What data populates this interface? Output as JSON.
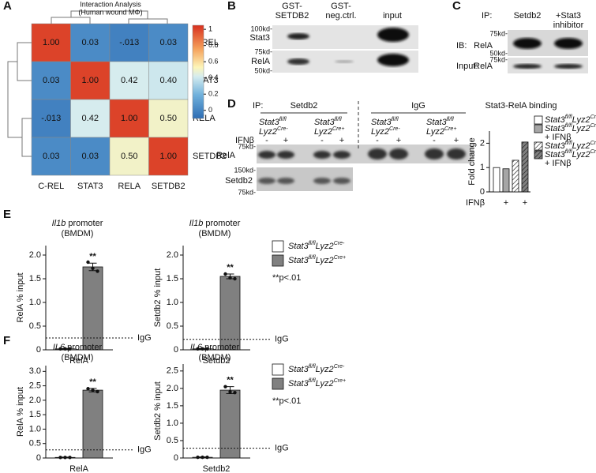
{
  "figure": {
    "panel_labels": [
      "A",
      "B",
      "C",
      "D",
      "E",
      "F"
    ],
    "heatmap": {
      "title": "Interaction Analysis",
      "subtitle": "(Human wound MΦ)",
      "categories": [
        "C-REL",
        "STAT3",
        "RELA",
        "SETDB2"
      ],
      "matrix": [
        [
          1,
          0.03,
          -0.013,
          0.03
        ],
        [
          0.03,
          1,
          0.42,
          0.4
        ],
        [
          -0.013,
          0.42,
          1,
          0.5
        ],
        [
          0.03,
          0.03,
          0.5,
          1
        ]
      ],
      "cell_labels": [
        [
          "1.00",
          "0.03",
          "-.013",
          "0.03"
        ],
        [
          "0.03",
          "1.00",
          "0.42",
          "0.40"
        ],
        [
          "-.013",
          "0.42",
          "1.00",
          "0.50"
        ],
        [
          "0.03",
          "0.03",
          "0.50",
          "1.00"
        ]
      ],
      "colorbar_lim": [
        -0.1,
        1.05
      ],
      "colorbar_ticks": [
        0,
        0.2,
        0.4,
        0.6,
        0.8,
        1
      ]
    },
    "blot_b": {
      "columns": [
        [
          "GST-",
          "SETDB2"
        ],
        [
          "GST-",
          "neg.ctrl."
        ],
        [
          "input"
        ]
      ],
      "rows": [
        "Stat3",
        "RelA"
      ],
      "markers": [
        "100kd-",
        "75kd-",
        "50kd-"
      ]
    },
    "blot_c": {
      "ip_label": "IP:",
      "ip_target": "Setdb2",
      "condition": [
        "+Stat3",
        "inhibitor"
      ],
      "ib_label": "IB:",
      "ib_target": "RelA",
      "input_label": "Input:",
      "input_target": "RelA",
      "markers": [
        "75kd-",
        "50kd-",
        "75kd-"
      ]
    },
    "blot_d": {
      "ip_label": "IP:",
      "groups": [
        "Setdb2",
        "IgG"
      ],
      "genotypes": [
        {
          "gene": "Stat3",
          "gene_sup": "fl/fl",
          "driver": "Lyz2",
          "driver_sup": "Cre-"
        },
        {
          "gene": "Stat3",
          "gene_sup": "fl/fl",
          "driver": "Lyz2",
          "driver_sup": "Cre+"
        },
        {
          "gene": "Stat3",
          "gene_sup": "fl/fl",
          "driver": "Lyz2",
          "driver_sup": "Cre-"
        },
        {
          "gene": "Stat3",
          "gene_sup": "fl/fl",
          "driver": "Lyz2",
          "driver_sup": "Cre+"
        }
      ],
      "treatment_label": "IFNβ",
      "lanes": [
        "-",
        "+",
        "-",
        "+",
        "-",
        "+",
        "-",
        "+"
      ],
      "rows": [
        "RelA",
        "Setdb2"
      ],
      "markers": [
        "75kd-",
        "150kd-",
        "75kd-"
      ]
    },
    "binding_chart": {
      "type": "bar",
      "title": "Stat3-RelA binding",
      "ylabel": "Fold change",
      "xlabel": "IFNβ",
      "categories": [
        null,
        "+",
        null,
        "+"
      ],
      "values": [
        1,
        0.95,
        1.3,
        2.05
      ],
      "colors": [
        "#ffffff",
        "#a6a6a6",
        "#ffffff",
        "#808080"
      ],
      "hatched": [
        false,
        false,
        true,
        true
      ],
      "ylim": [
        0,
        2.5
      ],
      "yticks": [
        0,
        1,
        2
      ],
      "legend": [
        {
          "gene": "Stat3",
          "gene_sup": "fl/fl",
          "driver": "Lyz2",
          "driver_sup": "Cre-"
        },
        {
          "gene": "Stat3",
          "gene_sup": "fl/fl",
          "driver": "Lyz2",
          "driver_sup": "Cre-",
          "treatment": "+ IFNβ"
        },
        {
          "gene": "Stat3",
          "gene_sup": "fl/fl",
          "driver": "Lyz2",
          "driver_sup": "Cre+"
        },
        {
          "gene": "Stat3",
          "gene_sup": "fl/fl",
          "driver": "Lyz2",
          "driver_sup": "Cre+",
          "treatment": "+ IFNβ"
        }
      ]
    },
    "promoter_rows": [
      {
        "legend": [
          {
            "gene": "Stat3",
            "gene_sup": "fl/fl",
            "driver": "Lyz2",
            "driver_sup": "Cre-"
          },
          {
            "gene": "Stat3",
            "gene_sup": "fl/fl",
            "driver": "Lyz2",
            "driver_sup": "Cre+"
          }
        ],
        "colors": [
          "#ffffff",
          "#808080"
        ],
        "note": "**p<.01",
        "charts": [
          {
            "type": "bar",
            "title_gene": "Il1b",
            "title_text": "promoter",
            "title_sub": "(BMDM)",
            "ylabel": "RelA % input",
            "category": "RelA",
            "values": [
              0.02,
              1.75
            ],
            "errors": [
              0.01,
              0.08
            ],
            "points": [
              [
                0.02,
                0.02,
                0.02
              ],
              [
                1.85,
                1.72,
                1.66
              ]
            ],
            "significance": "**",
            "igg": 0.25,
            "igg_label": "IgG",
            "ylim": [
              0,
              2.2
            ],
            "yticks": [
              0,
              0.5,
              {
                "value": 1,
                "label": "1.0"
              },
              1.5,
              {
                "value": 2,
                "label": "2.0"
              }
            ]
          },
          {
            "type": "bar",
            "title_gene": "Il1b",
            "title_text": "promoter",
            "title_sub": "(BMDM)",
            "ylabel": "Setdb2 % input",
            "category": "Setdb2",
            "values": [
              0.02,
              1.55
            ],
            "errors": [
              0.01,
              0.05
            ],
            "points": [
              [
                0.02,
                0.02,
                0.02
              ],
              [
                1.6,
                1.52,
                1.5
              ]
            ],
            "significance": "**",
            "igg": 0.22,
            "igg_label": "IgG",
            "ylim": [
              0,
              2.2
            ],
            "yticks": [
              0,
              0.5,
              {
                "value": 1,
                "label": "1.0"
              },
              1.5,
              {
                "value": 2,
                "label": "2.0"
              }
            ]
          }
        ]
      },
      {
        "legend": [
          {
            "gene": "Stat3",
            "gene_sup": "fl/fl",
            "driver": "Lyz2",
            "driver_sup": "Cre-"
          },
          {
            "gene": "Stat3",
            "gene_sup": "fl/fl",
            "driver": "Lyz2",
            "driver_sup": "Cre+"
          }
        ],
        "colors": [
          "#ffffff",
          "#808080"
        ],
        "note": "**p<.01",
        "charts": [
          {
            "type": "bar",
            "title_gene": "IL6",
            "title_text": "promoter",
            "title_sub": "(BMDM)",
            "ylabel": "RelA % input",
            "category": "RelA",
            "values": [
              0.02,
              2.35
            ],
            "errors": [
              0.01,
              0.06
            ],
            "points": [
              [
                0.02,
                0.02,
                0.02
              ],
              [
                2.4,
                2.35,
                2.3
              ]
            ],
            "significance": "**",
            "igg": 0.28,
            "igg_label": "IgG",
            "ylim": [
              0,
              3.2
            ],
            "yticks": [
              0,
              0.5,
              {
                "value": 1,
                "label": "1.0"
              },
              1.5,
              {
                "value": 2,
                "label": "2.0"
              },
              2.5,
              {
                "value": 3,
                "label": "3.0"
              }
            ]
          },
          {
            "type": "bar",
            "title_gene": "IL6",
            "title_text": "promoter",
            "title_sub": "(BMDM)",
            "ylabel": "Setdb2 % input",
            "category": "Setdb2",
            "values": [
              0.02,
              1.95
            ],
            "errors": [
              0.01,
              0.1
            ],
            "points": [
              [
                0.02,
                0.02,
                0.02
              ],
              [
                2.05,
                1.9,
                1.88
              ]
            ],
            "significance": "**",
            "igg": 0.28,
            "igg_label": "IgG",
            "ylim": [
              0,
              2.7
            ],
            "yticks": [
              0,
              0.5,
              {
                "value": 1,
                "label": "1.0"
              },
              1.5,
              {
                "value": 2,
                "label": "2.0"
              },
              2.5
            ]
          }
        ]
      }
    ]
  }
}
